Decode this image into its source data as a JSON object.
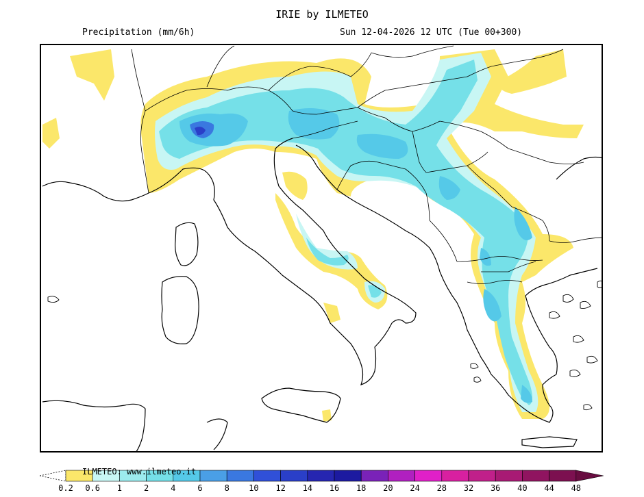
{
  "header": {
    "title": "IRIE by ILMETEO",
    "variable": "Precipitation (mm/6h)",
    "valid_time": "Sun 12-04-2026 12 UTC (Tue 00+300)"
  },
  "map": {
    "region": "Italy and the Balkans",
    "precip_colors": {
      "light": "#fbe76a",
      "pale_cyan": "#c8f6f4",
      "cyan": "#75e0e8",
      "mid_cyan": "#55c9e8",
      "blue": "#3a78e0",
      "deep_blue": "#2a3fc8"
    }
  },
  "legend": {
    "credit": "ILMETEO: www.ilmeteo.it",
    "ticks": [
      "0.2",
      "0.6",
      "1",
      "2",
      "4",
      "6",
      "8",
      "10",
      "12",
      "14",
      "16",
      "18",
      "20",
      "24",
      "28",
      "32",
      "36",
      "40",
      "44",
      "48"
    ],
    "colors": [
      "#ffffff",
      "#fbe76a",
      "#c8f6f4",
      "#9cebee",
      "#75e0e8",
      "#55c9e8",
      "#4a9fe6",
      "#3a78e0",
      "#3050d8",
      "#2a3fc8",
      "#2626b0",
      "#1c1aa0",
      "#7a22b8",
      "#b020c0",
      "#e020c8",
      "#d820a0",
      "#c0208a",
      "#a81a74",
      "#901460",
      "#7c1050",
      "#680c40"
    ]
  }
}
